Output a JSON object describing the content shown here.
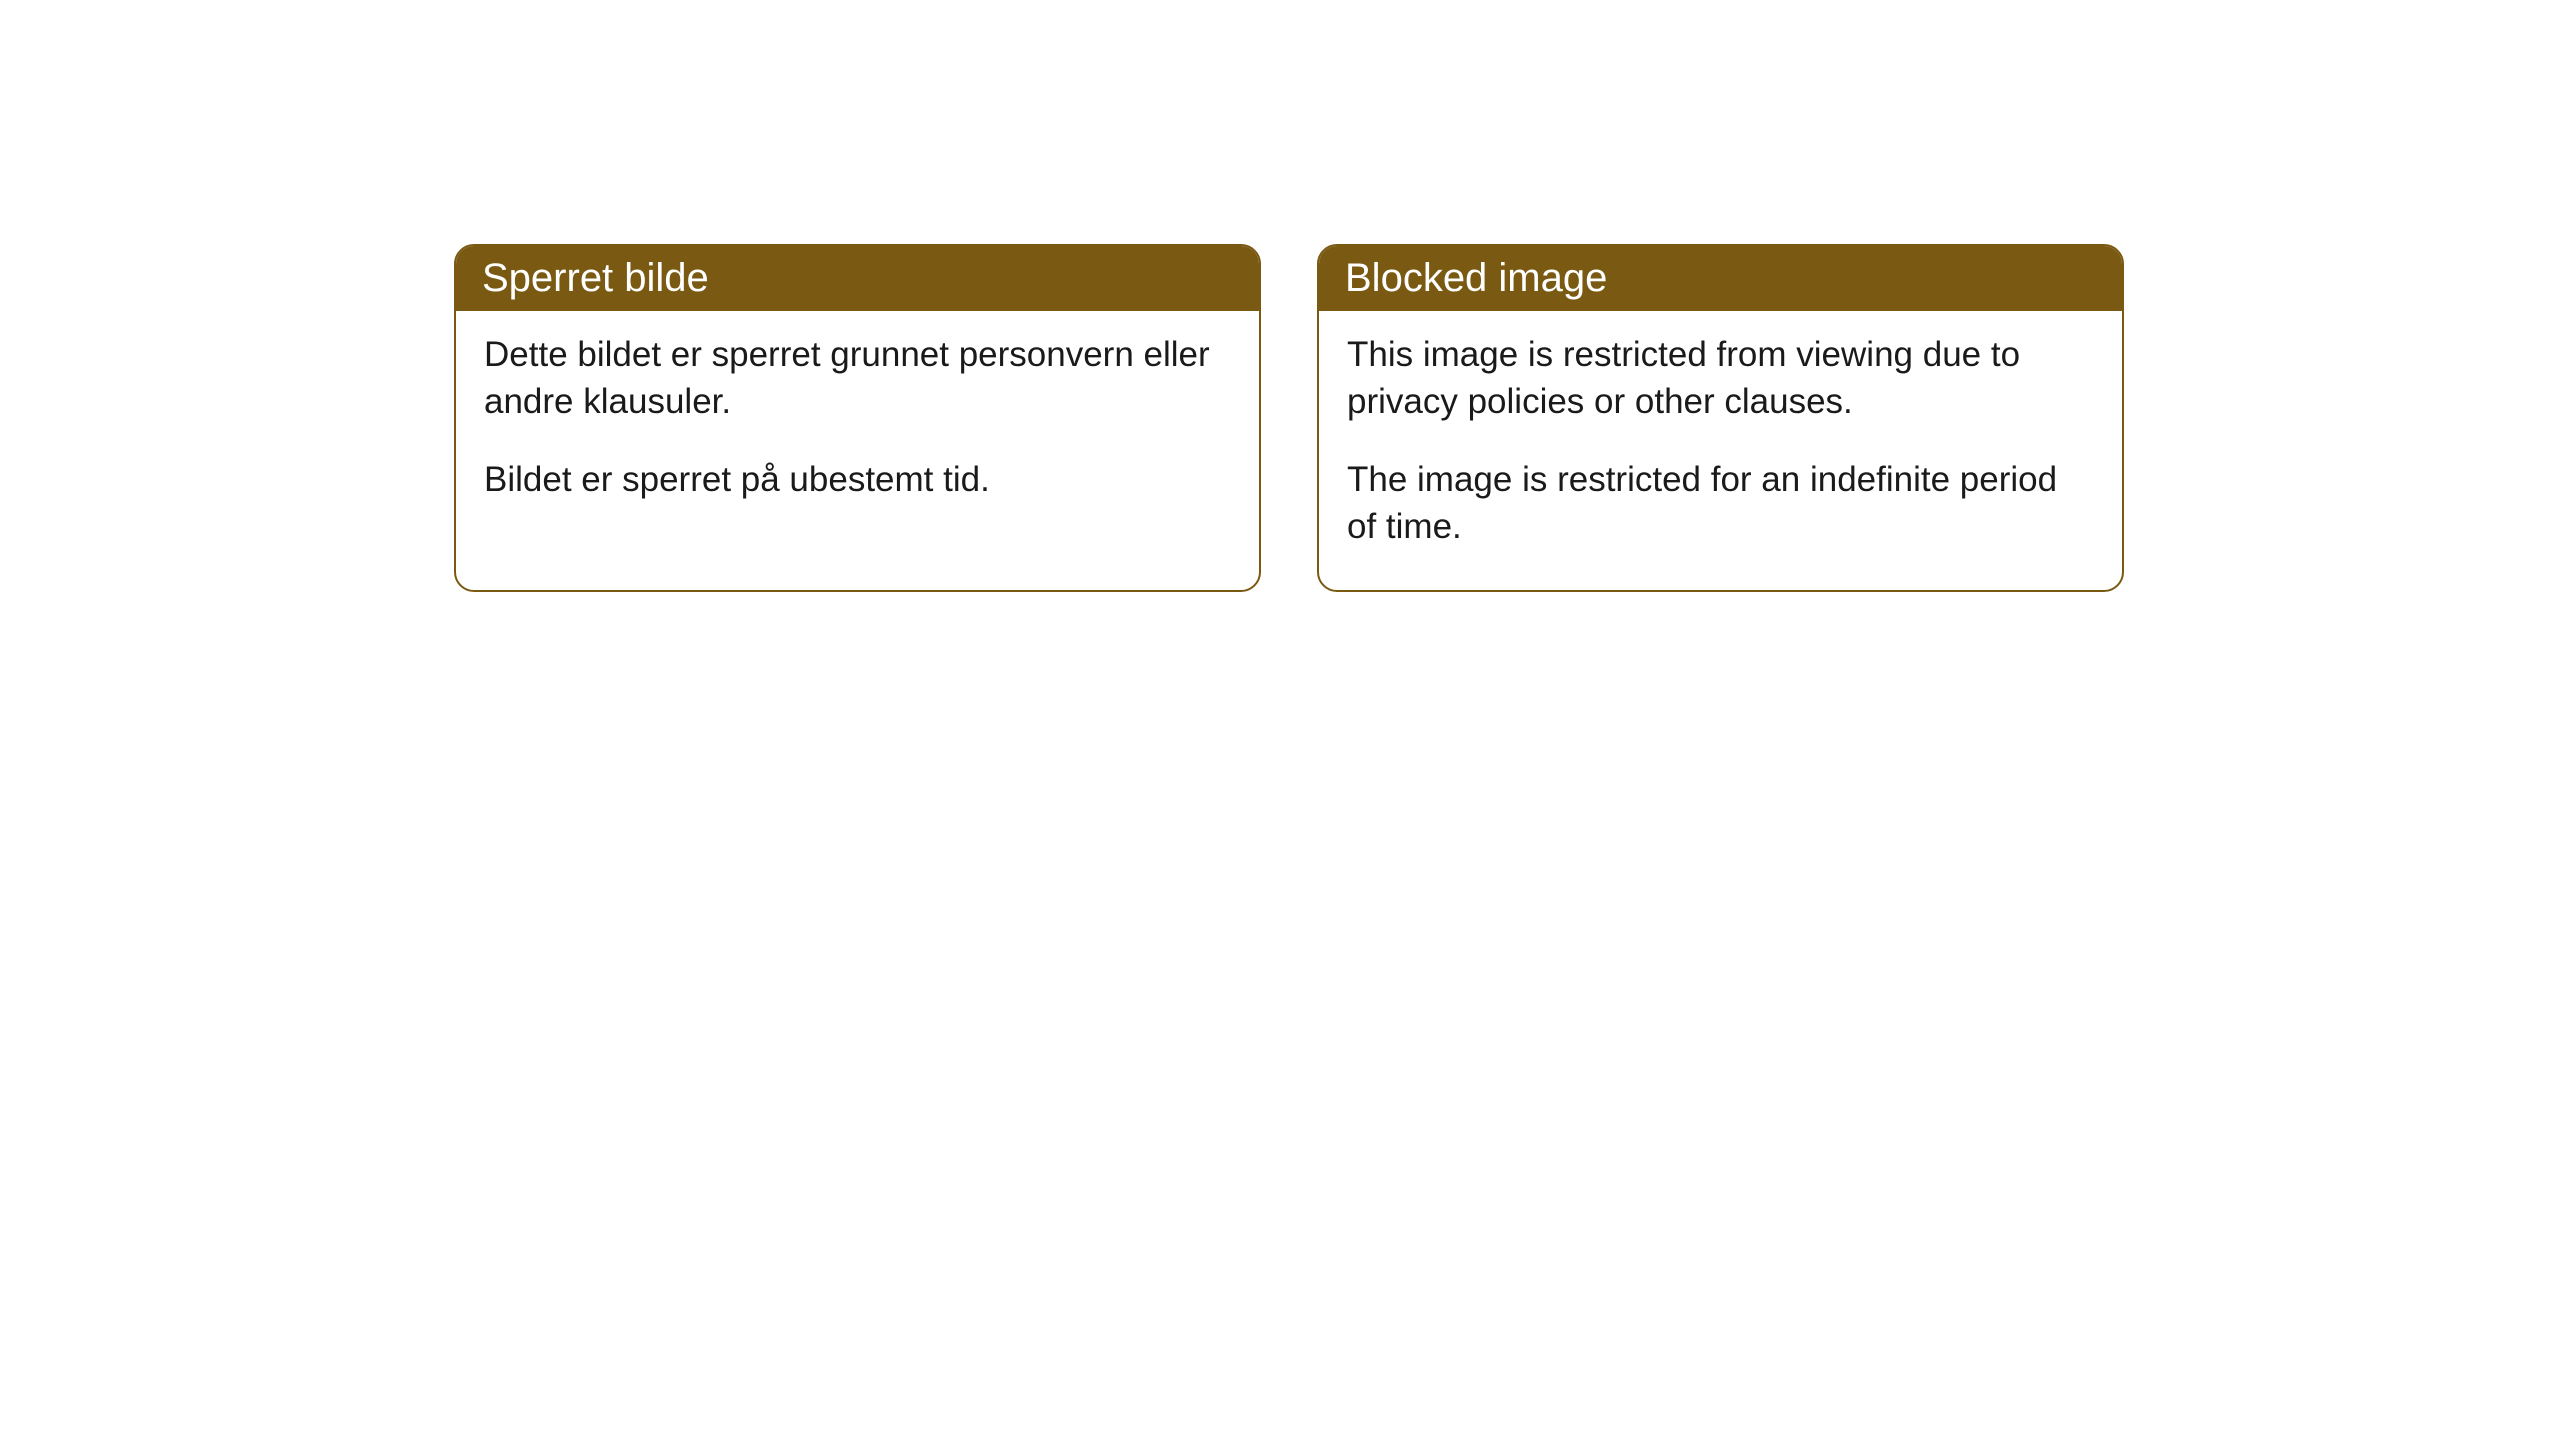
{
  "cards": [
    {
      "title": "Sperret bilde",
      "paragraph1": "Dette bildet er sperret grunnet personvern eller andre klausuler.",
      "paragraph2": "Bildet er sperret på ubestemt tid."
    },
    {
      "title": "Blocked image",
      "paragraph1": "This image is restricted from viewing due to privacy policies or other clauses.",
      "paragraph2": "The image is restricted for an indefinite period of time."
    }
  ],
  "styling": {
    "header_background": "#7a5a12",
    "header_text_color": "#ffffff",
    "border_color": "#7a5a12",
    "body_background": "#ffffff",
    "body_text_color": "#1a1a1a",
    "border_radius": 20,
    "header_fontsize": 40,
    "body_fontsize": 35
  }
}
